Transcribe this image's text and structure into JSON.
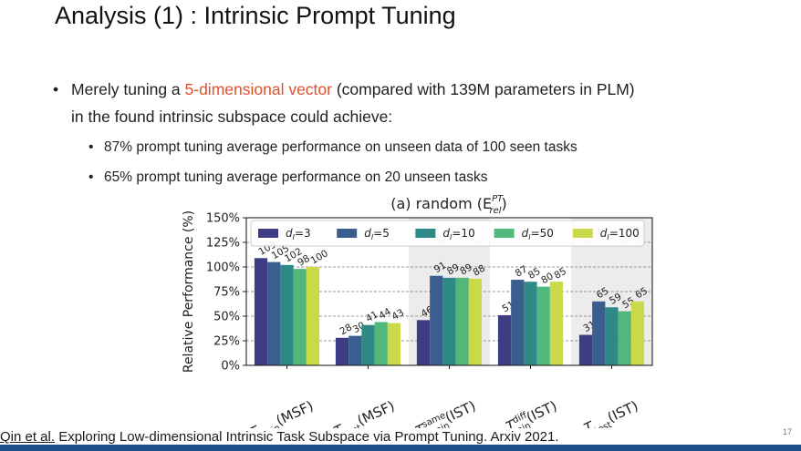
{
  "slide": {
    "title": "Analysis (1) : Intrinsic Prompt Tuning",
    "bullet_pre": "Merely tuning a ",
    "bullet_highlight": "5-dimensional vector",
    "bullet_post": " (compared with 139M parameters in PLM)",
    "bullet_line2": "in the found intrinsic subspace could achieve:",
    "sub1": "87% prompt tuning average performance on unseen data of 100 seen tasks",
    "sub2": "65% prompt tuning average performance on 20 unseen tasks",
    "footer_name": "Qin et al.",
    "footer_text": " Exploring Low-dimensional Intrinsic Task Subspace via Prompt Tuning. Arxiv 2021.",
    "page_number": "17",
    "bullet_glyph": "•"
  },
  "colors": {
    "accent": "#e0502a",
    "series": [
      "#3e3d83",
      "#3a5f8e",
      "#2f8a87",
      "#52b77a",
      "#c9d94a"
    ],
    "shade": "#ececec"
  },
  "chart_data": {
    "type": "bar",
    "title": "(a) random (E",
    "title_sup": "PT",
    "title_sub": "rel",
    "title_end": ")",
    "ylabel": "Relative Performance (%)",
    "ylim": [
      0,
      150
    ],
    "yticks": [
      "0%",
      "25%",
      "50%",
      "75%",
      "100%",
      "125%",
      "150%"
    ],
    "ytick_values": [
      0,
      25,
      50,
      75,
      100,
      125,
      150
    ],
    "grid": "dashed horizontal",
    "legend_position": "top",
    "categories": [
      {
        "main": "T",
        "sub": "train",
        "sup": "",
        "tail": "(MSF)"
      },
      {
        "main": "T",
        "sub": "test",
        "sup": "",
        "tail": "(MSF)"
      },
      {
        "main": "T",
        "sub": "train",
        "sup": "same",
        "tail": "(IST)"
      },
      {
        "main": "T",
        "sub": "train",
        "sup": "diff",
        "tail": "(IST)"
      },
      {
        "main": "T",
        "sub": "test",
        "sup": "",
        "tail": "(IST)"
      }
    ],
    "shaded_categories": [
      2,
      4
    ],
    "series": [
      {
        "name": "d_I=3",
        "label_main": "d",
        "label_sub": "I",
        "label_val": "=3",
        "values": [
          109,
          28,
          46,
          51,
          31
        ],
        "labels": [
          "109",
          "28",
          "46",
          "51",
          "31"
        ]
      },
      {
        "name": "d_I=5",
        "label_main": "d",
        "label_sub": "I",
        "label_val": "=5",
        "values": [
          105,
          30,
          91,
          87,
          65
        ],
        "labels": [
          "105",
          "30",
          "91",
          "87",
          "65"
        ]
      },
      {
        "name": "d_I=10",
        "label_main": "d",
        "label_sub": "I",
        "label_val": "=10",
        "values": [
          102,
          41,
          89,
          85,
          59
        ],
        "labels": [
          "102",
          "41",
          "89",
          "85",
          "59"
        ]
      },
      {
        "name": "d_I=50",
        "label_main": "d",
        "label_sub": "I",
        "label_val": "=50",
        "values": [
          98,
          44,
          89,
          80,
          55
        ],
        "labels": [
          "98",
          "44",
          "89",
          "80",
          "55"
        ]
      },
      {
        "name": "d_I=100",
        "label_main": "d",
        "label_sub": "I",
        "label_val": "=100",
        "values": [
          100,
          43,
          88,
          85,
          65
        ],
        "labels": [
          "100",
          "43",
          "88",
          "85",
          "65"
        ]
      }
    ]
  }
}
